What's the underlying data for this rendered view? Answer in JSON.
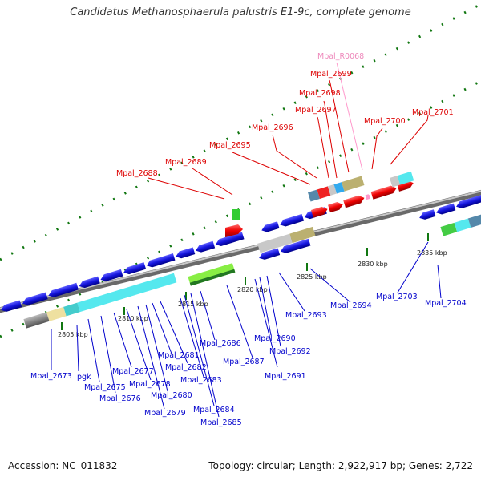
{
  "title": "Candidatus Methanosphaerula palustris E1-9c, complete genome",
  "footer": {
    "accession": "Accession: NC_011832",
    "summary": "Topology: circular; Length: 2,922,917 bp; Genes: 2,722"
  },
  "colors": {
    "gene_blue": "#1515dd",
    "gene_red": "#ee0000",
    "rna_pink": "#ff99cc",
    "label_blue": "#0000cc",
    "label_red": "#dd0000",
    "label_pink": "#ee88bb",
    "tick_green": "#007700",
    "backbone": "#888888"
  },
  "ticks": [
    {
      "label": "2805 kbp"
    },
    {
      "label": "2810 kbp"
    },
    {
      "label": "2815 kbp"
    },
    {
      "label": "2820 kbp"
    },
    {
      "label": "2825 kbp"
    },
    {
      "label": "2830 kbp"
    },
    {
      "label": "2835 kbp"
    }
  ],
  "genes": {
    "upper": [
      {
        "name": "Mpal_R0068",
        "type": "rna"
      },
      {
        "name": "Mpal_2699",
        "type": "forward"
      },
      {
        "name": "Mpal_2698",
        "type": "forward"
      },
      {
        "name": "Mpal_2697",
        "type": "forward"
      },
      {
        "name": "Mpal_2700",
        "type": "forward"
      },
      {
        "name": "Mpal_2701",
        "type": "forward"
      },
      {
        "name": "Mpal_2696",
        "type": "forward"
      },
      {
        "name": "Mpal_2695",
        "type": "forward"
      },
      {
        "name": "Mpal_2689",
        "type": "forward"
      },
      {
        "name": "Mpal_2688",
        "type": "forward"
      }
    ],
    "lower": [
      {
        "name": "Mpal_2673"
      },
      {
        "name": "pgk"
      },
      {
        "name": "Mpal_2675"
      },
      {
        "name": "Mpal_2676"
      },
      {
        "name": "Mpal_2677"
      },
      {
        "name": "Mpal_2678"
      },
      {
        "name": "Mpal_2679"
      },
      {
        "name": "Mpal_2680"
      },
      {
        "name": "Mpal_2681"
      },
      {
        "name": "Mpal_2682"
      },
      {
        "name": "Mpal_2683"
      },
      {
        "name": "Mpal_2684"
      },
      {
        "name": "Mpal_2685"
      },
      {
        "name": "Mpal_2686"
      },
      {
        "name": "Mpal_2687"
      },
      {
        "name": "Mpal_2690"
      },
      {
        "name": "Mpal_2691"
      },
      {
        "name": "Mpal_2692"
      },
      {
        "name": "Mpal_2693"
      },
      {
        "name": "Mpal_2694"
      },
      {
        "name": "Mpal_2703"
      },
      {
        "name": "Mpal_2704"
      }
    ]
  }
}
